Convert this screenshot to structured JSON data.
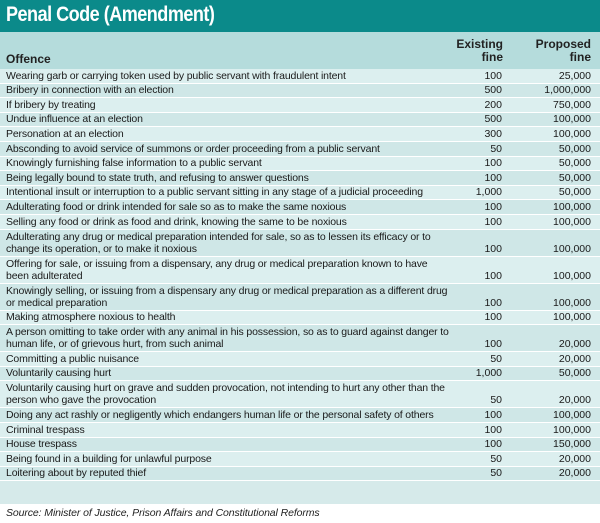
{
  "title": "Penal Code (Amendment)",
  "columns": {
    "offence": "Offence",
    "existing": [
      "Existing",
      "fine"
    ],
    "proposed": [
      "Proposed",
      "fine"
    ]
  },
  "rows": [
    {
      "offence": "Wearing garb or carrying token used by public servant with fraudulent intent",
      "existing": "100",
      "proposed": "25,000"
    },
    {
      "offence": "Bribery in connection with an election",
      "existing": "500",
      "proposed": "1,000,000"
    },
    {
      "offence": "If bribery by treating",
      "existing": "200",
      "proposed": "750,000"
    },
    {
      "offence": "Undue influence at an election",
      "existing": "500",
      "proposed": "100,000"
    },
    {
      "offence": "Personation at an election",
      "existing": "300",
      "proposed": "100,000"
    },
    {
      "offence": "Absconding to avoid service of summons or order proceeding from a public servant",
      "existing": "50",
      "proposed": "50,000"
    },
    {
      "offence": "Knowingly furnishing false information to a public servant",
      "existing": "100",
      "proposed": "50,000"
    },
    {
      "offence": "Being legally bound to state truth, and refusing to answer questions",
      "existing": "100",
      "proposed": "50,000"
    },
    {
      "offence": "Intentional insult or interruption to a public servant sitting in any stage of a judicial proceeding",
      "existing": "1,000",
      "proposed": "50,000"
    },
    {
      "offence": "Adulterating food or drink intended for sale so as to make the same noxious",
      "existing": "100",
      "proposed": "100,000"
    },
    {
      "offence": "Selling any food or drink as food and drink, knowing the same to be noxious",
      "existing": "100",
      "proposed": "100,000"
    },
    {
      "offence": "Adulterating any drug or medical preparation intended for sale, so as to lessen its efficacy or to change its operation, or to make it noxious",
      "existing": "100",
      "proposed": "100,000"
    },
    {
      "offence": "Offering for sale, or issuing from a dispensary, any drug or medical preparation known to have been adulterated",
      "existing": "100",
      "proposed": "100,000"
    },
    {
      "offence": "Knowingly selling, or issuing from a dispensary any drug or medical preparation as a different drug or medical preparation",
      "existing": "100",
      "proposed": "100,000"
    },
    {
      "offence": "Making atmosphere noxious to health",
      "existing": "100",
      "proposed": "100,000"
    },
    {
      "offence": "A person omitting to take order with any animal in his possession, so as to guard against danger to human life, or of grievous hurt, from such animal",
      "existing": "100",
      "proposed": "20,000"
    },
    {
      "offence": "Committing a public nuisance",
      "existing": "50",
      "proposed": "20,000"
    },
    {
      "offence": "Voluntarily causing hurt",
      "existing": "1,000",
      "proposed": "50,000"
    },
    {
      "offence": "Voluntarily causing hurt on grave and sudden provocation, not intending to hurt any other than the person who gave the provocation",
      "existing": "50",
      "proposed": "20,000"
    },
    {
      "offence": "Doing any act rashly or negligently which endangers human life or the personal safety of others",
      "existing": "100",
      "proposed": "100,000"
    },
    {
      "offence": "Criminal trespass",
      "existing": "100",
      "proposed": "100,000"
    },
    {
      "offence": "House trespass",
      "existing": "100",
      "proposed": "150,000"
    },
    {
      "offence": "Being found in a building for unlawful purpose",
      "existing": "50",
      "proposed": "20,000"
    },
    {
      "offence": "Loitering about by reputed thief",
      "existing": "50",
      "proposed": "20,000"
    }
  ],
  "source": "Source: Minister of Justice, Prison Affairs and Constitutional Reforms",
  "colors": {
    "title_bar": "#0b8a8a",
    "header_bg": "#b5dcdc",
    "row_bg": "#d6eaea"
  }
}
